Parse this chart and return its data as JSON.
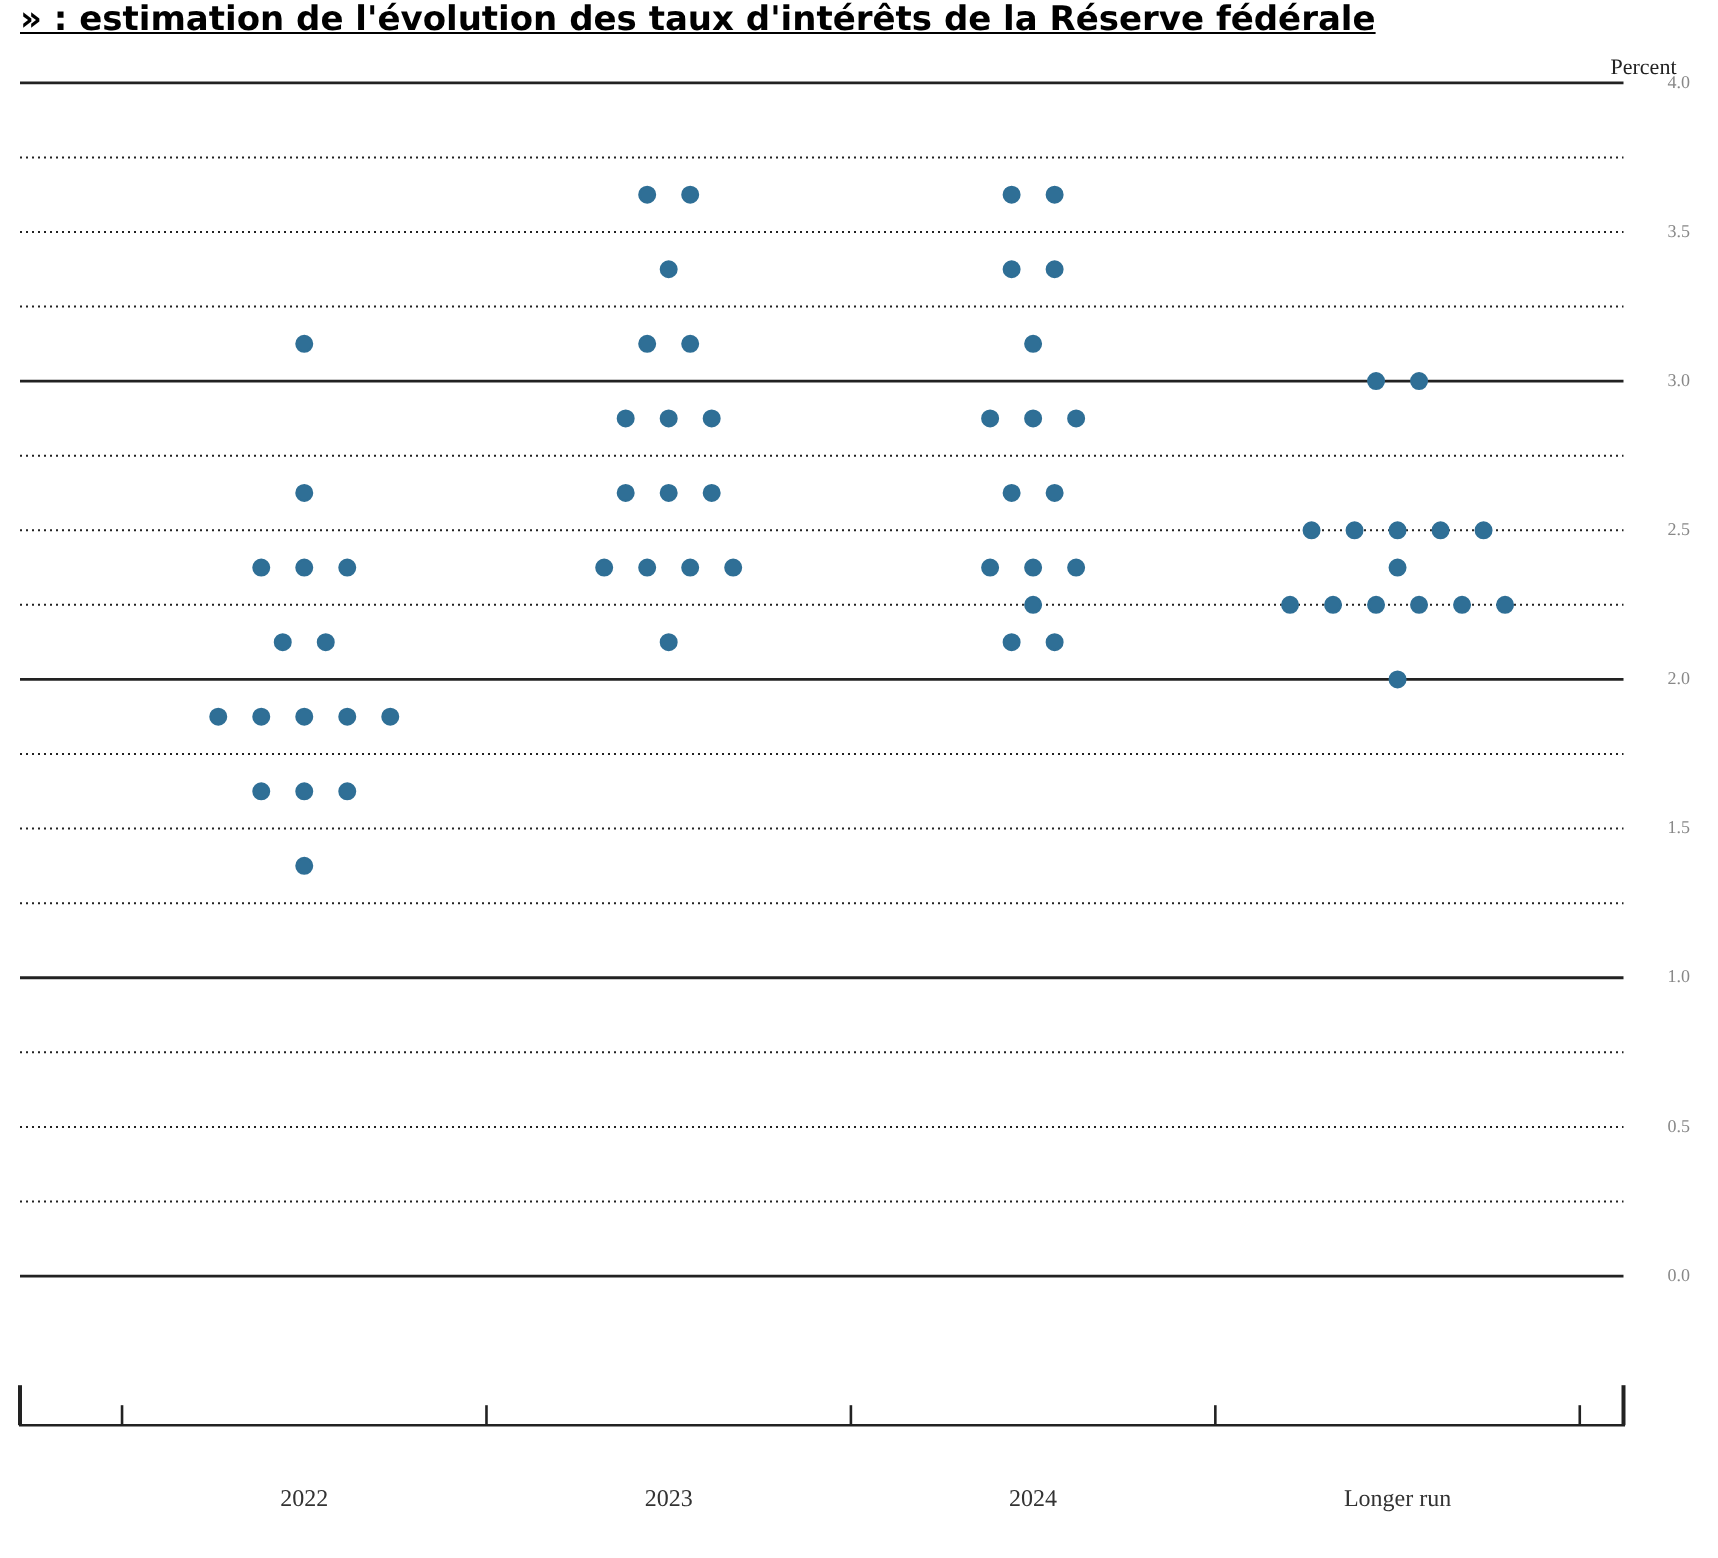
{
  "chart_data": {
    "type": "scatter",
    "title": "» : estimation de l'évolution des taux d'intérêts de la Réserve fédérale",
    "ylabel": "Percent",
    "categories": [
      "2022",
      "2023",
      "2024",
      "Longer run"
    ],
    "series": [
      {
        "color": "#2f6f96",
        "values": [
          3.125,
          3.625,
          3.625,
          3.0
        ]
      },
      {
        "color": "#2f6f96",
        "values": [
          2.625,
          3.625,
          3.625,
          3.0
        ]
      },
      {
        "color": "#2f6f96",
        "values": [
          2.375,
          3.375,
          3.375,
          2.5
        ]
      },
      {
        "color": "#2f6f96",
        "values": [
          2.375,
          3.125,
          3.375,
          2.5
        ]
      },
      {
        "color": "#2f6f96",
        "values": [
          2.375,
          3.125,
          3.125,
          2.5
        ]
      },
      {
        "color": "#2f6f96",
        "values": [
          2.125,
          2.875,
          2.875,
          2.5
        ]
      },
      {
        "color": "#2f6f96",
        "values": [
          2.125,
          2.875,
          2.875,
          2.5
        ]
      },
      {
        "color": "#2f6f96",
        "values": [
          1.875,
          2.875,
          2.875,
          2.375
        ]
      },
      {
        "color": "#2f6f96",
        "values": [
          1.875,
          2.625,
          2.625,
          2.25
        ]
      },
      {
        "color": "#2f6f96",
        "values": [
          1.875,
          2.625,
          2.625,
          2.25
        ]
      },
      {
        "color": "#2f6f96",
        "values": [
          1.875,
          2.625,
          2.375,
          2.25
        ]
      },
      {
        "color": "#2f6f96",
        "values": [
          1.875,
          2.375,
          2.375,
          2.25
        ]
      },
      {
        "color": "#2f6f96",
        "values": [
          1.625,
          2.375,
          2.375,
          2.25
        ]
      },
      {
        "color": "#2f6f96",
        "values": [
          1.625,
          2.375,
          2.25,
          2.25
        ]
      },
      {
        "color": "#2f6f96",
        "values": [
          1.625,
          2.375,
          2.125,
          2.0
        ]
      },
      {
        "color": "#2f6f96",
        "values": [
          1.375,
          2.125,
          2.125,
          null
        ]
      }
    ],
    "ylim": [
      -0.5,
      4.0
    ],
    "yticks": [
      {
        "value": 0,
        "label": "0.0"
      },
      {
        "value": 0.25,
        "label": null
      },
      {
        "value": 0.5,
        "label": "0.5"
      },
      {
        "value": 0.75,
        "label": null
      },
      {
        "value": 1,
        "label": "1.0"
      },
      {
        "value": 1.25,
        "label": null
      },
      {
        "value": 1.5,
        "label": "1.5"
      },
      {
        "value": 1.75,
        "label": null
      },
      {
        "value": 2,
        "label": "2.0"
      },
      {
        "value": 2.25,
        "label": null
      },
      {
        "value": 2.5,
        "label": "2.5"
      },
      {
        "value": 2.75,
        "label": null
      },
      {
        "value": 3,
        "label": "3.0"
      },
      {
        "value": 3.25,
        "label": null
      },
      {
        "value": 3.5,
        "label": "3.5"
      },
      {
        "value": 3.75,
        "label": null
      },
      {
        "value": 4,
        "label": "4.0"
      }
    ],
    "grid": "y",
    "legend": false,
    "marker": "circle"
  }
}
